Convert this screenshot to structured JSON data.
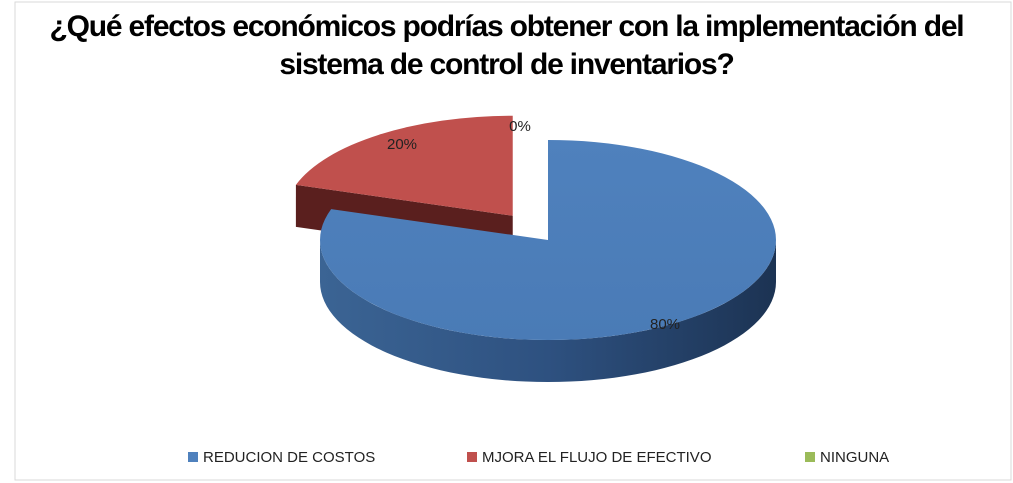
{
  "chart_data": {
    "type": "pie3d",
    "title": "¿Qué efectos económicos podrías obtener con la implementación del sistema de control de inventarios?",
    "categories": [
      "REDUCION DE COSTOS",
      "MJORA EL FLUJO DE EFECTIVO",
      "NINGUNA"
    ],
    "values": [
      80,
      20,
      0
    ],
    "value_labels": [
      "80%",
      "20%",
      "0%"
    ],
    "colors": [
      "#4f81bd",
      "#c0504d",
      "#9bbb59"
    ],
    "legend": "bottom"
  }
}
